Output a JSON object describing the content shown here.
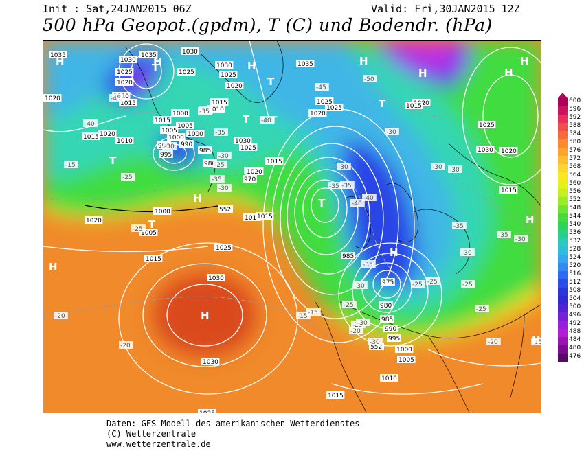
{
  "header": {
    "init": "Init : Sat,24JAN2015 06Z",
    "valid": "Valid: Fri,30JAN2015 12Z",
    "title": "500 hPa Geopot.(gpdm), T (C) und Bodendr. (hPa)"
  },
  "colors": {
    "orange_dark": "#d9481e",
    "orange": "#f08a2a",
    "yellow": "#f5e41c",
    "green": "#3fdc3f",
    "teal": "#34d6b4",
    "cyan": "#3fb6e6",
    "blue": "#2a45e6",
    "purple": "#7a3cf0",
    "magenta": "#c42ee0"
  },
  "colorbar": {
    "values": [
      "600",
      "596",
      "592",
      "588",
      "584",
      "580",
      "576",
      "572",
      "568",
      "564",
      "560",
      "556",
      "552",
      "548",
      "544",
      "540",
      "536",
      "532",
      "528",
      "524",
      "520",
      "516",
      "512",
      "508",
      "504",
      "500",
      "496",
      "492",
      "488",
      "484",
      "480",
      "476"
    ],
    "colors": [
      "#b0005a",
      "#d01060",
      "#e8305a",
      "#f05048",
      "#f86a3a",
      "#fb8a2e",
      "#fca52a",
      "#fcbe2a",
      "#fcd62a",
      "#f8e81e",
      "#e4f21a",
      "#c4f020",
      "#98ec28",
      "#6ee434",
      "#44dc3c",
      "#2ed45a",
      "#28d090",
      "#2acabe",
      "#30bce0",
      "#36a6f0",
      "#3688f4",
      "#2e6af4",
      "#2a4ce8",
      "#2a36d8",
      "#3626d4",
      "#5420d4",
      "#7820d8",
      "#9820dc",
      "#b21ed0",
      "#9a14b0",
      "#7a0c90",
      "#5a0868"
    ]
  },
  "map_labels": {
    "highs": [
      "H",
      "H",
      "H",
      "H",
      "H",
      "H",
      "H",
      "H",
      "H",
      "H",
      "H",
      "H",
      "H"
    ],
    "lows": [
      "T",
      "T",
      "T",
      "T",
      "T",
      "T",
      "T",
      "T"
    ],
    "pressure": [
      "1035",
      "1020",
      "1015",
      "1030",
      "1025",
      "1020",
      "1010",
      "1015",
      "1005",
      "1000",
      "990",
      "995",
      "1035",
      "1030",
      "1025",
      "1020",
      "1015",
      "1010",
      "1035",
      "1025",
      "1020",
      "1030",
      "1025",
      "1020",
      "1015",
      "1010",
      "1005",
      "1000",
      "990",
      "985",
      "980",
      "975",
      "970",
      "1015",
      "1030",
      "1025",
      "1020",
      "1015",
      "1015",
      "1000",
      "1005",
      "1020",
      "1015",
      "1025",
      "1030",
      "1030",
      "1035",
      "985",
      "975",
      "980",
      "985",
      "990",
      "995",
      "1000",
      "1005",
      "1010",
      "1015",
      "1025",
      "1030",
      "1020",
      "1015",
      "1025",
      "1015",
      "1020",
      "1000"
    ],
    "temps": [
      "-40",
      "-45",
      "-35",
      "-35",
      "-40",
      "-35",
      "-30",
      "-25",
      "-30",
      "-35",
      "-30",
      "-25",
      "-25",
      "-20",
      "-20",
      "-15",
      "-15",
      "-15",
      "-20",
      "-25",
      "-30",
      "-30",
      "-25",
      "-40",
      "-35",
      "-45",
      "-50",
      "-30",
      "-30",
      "-30",
      "-40",
      "-35",
      "-35",
      "-30",
      "-25",
      "-25",
      "-30",
      "-35",
      "-30",
      "-25",
      "-20",
      "-15",
      "-25",
      "-35",
      "-30"
    ],
    "geopot": [
      "552",
      "552"
    ]
  },
  "credits": {
    "line1": "Daten: GFS-Modell des amerikanischen Wetterdienstes",
    "line2": "(C) Wetterzentrale",
    "line3": "www.wetterzentrale.de"
  }
}
